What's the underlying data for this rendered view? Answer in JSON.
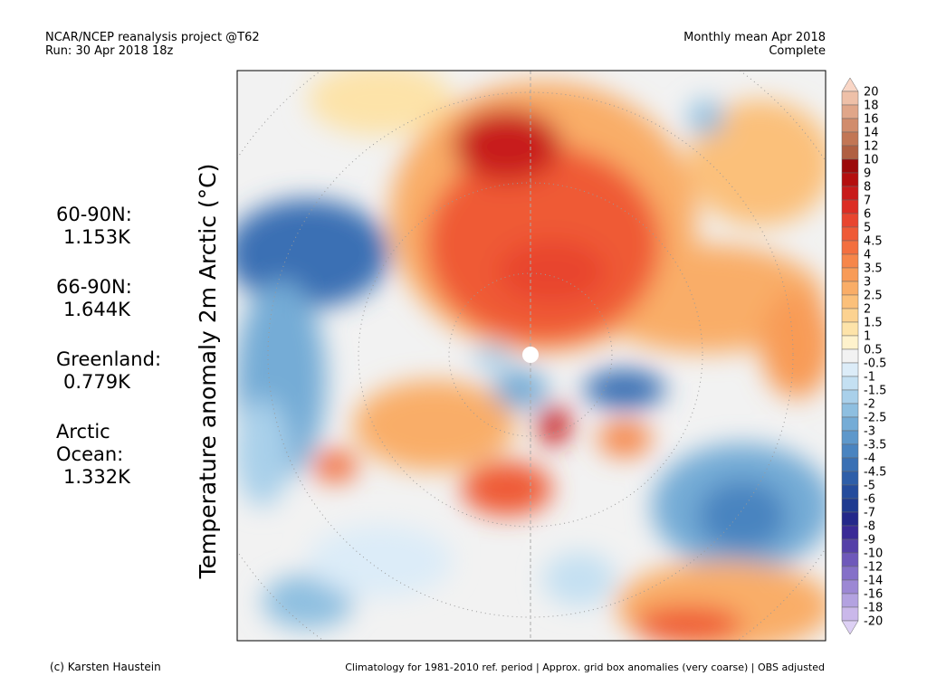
{
  "header": {
    "left_lines": [
      "NCAR/NCEP reanalysis project @T62",
      "Run: 30 Apr 2018 18z"
    ],
    "right_lines": [
      "Monthly mean Apr 2018",
      "Complete"
    ]
  },
  "axis_label": "Temperature anomaly 2m Arctic (°C)",
  "stats": [
    {
      "label_lines": [
        "60-90N:"
      ],
      "value": "1.153K"
    },
    {
      "label_lines": [
        "66-90N:"
      ],
      "value": "1.644K"
    },
    {
      "label_lines": [
        "Greenland:"
      ],
      "value": "0.779K"
    },
    {
      "label_lines": [
        "Arctic",
        "Ocean:"
      ],
      "value": "1.332K"
    }
  ],
  "colorbar": {
    "labels": [
      20,
      18,
      16,
      14,
      12,
      10,
      9,
      8,
      7,
      6,
      5,
      4.5,
      4,
      3.5,
      3,
      2.5,
      2,
      1.5,
      1,
      0.5,
      -0.5,
      -1,
      -1.5,
      -2,
      -2.5,
      -3,
      -3.5,
      -4,
      -4.5,
      -5,
      -6,
      -7,
      -8,
      -9,
      -10,
      -12,
      -14,
      -16,
      -18,
      -20
    ],
    "colors": [
      "#f9d6c6",
      "#eec0a8",
      "#e0a689",
      "#d18c6c",
      "#c27655",
      "#b05f42",
      "#9c0a0a",
      "#b40f0f",
      "#c81b1b",
      "#dc2d24",
      "#e8452f",
      "#ef5a36",
      "#f36f3f",
      "#f6864a",
      "#f89b57",
      "#f9ad67",
      "#fbc07a",
      "#fcd290",
      "#fde3a9",
      "#fef2cc",
      "#f2f2f2",
      "#dcecf8",
      "#c4e0f2",
      "#a9d0ea",
      "#8ebfe0",
      "#75acd6",
      "#5e98cb",
      "#4a84c0",
      "#3a70b4",
      "#2e5ea8",
      "#254c9c",
      "#1f3b90",
      "#24288a",
      "#3a2a96",
      "#5540a8",
      "#6e58ba",
      "#8570c8",
      "#9c88d4",
      "#b3a2e0",
      "#cab8ea",
      "#ddd0f4"
    ]
  },
  "footer": {
    "left": "(c) Karsten Haustein",
    "right": "Climatology for 1981-2010 ref. period | Approx. grid box anomalies (very coarse) | OBS adjusted"
  }
}
